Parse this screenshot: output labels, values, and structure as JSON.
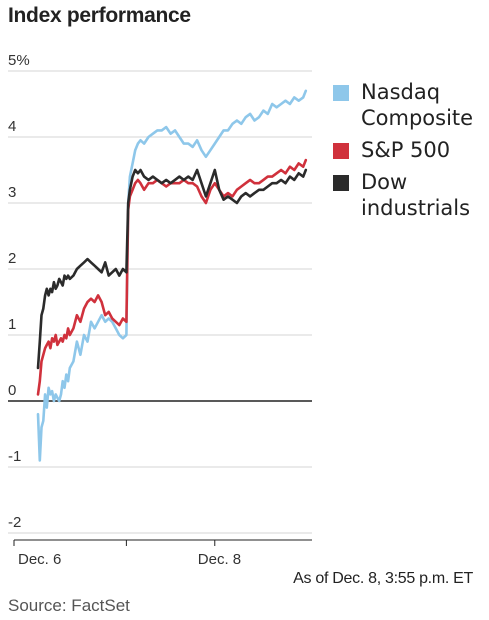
{
  "chart_data": {
    "type": "line",
    "title": "Index performance",
    "y_unit": "%",
    "ylim": [
      -2,
      5
    ],
    "yticks": [
      -2,
      -1,
      0,
      1,
      2,
      3,
      4,
      5
    ],
    "ytick_labels": [
      "-2",
      "-1",
      "0",
      "1",
      "2",
      "3",
      "4",
      "5%"
    ],
    "xticks": [
      {
        "label": "Dec. 6",
        "x": 0
      },
      {
        "label": "Dec. 8",
        "x": 2
      }
    ],
    "x_range": [
      0,
      3.1
    ],
    "day_boundaries": [
      0,
      1,
      2
    ],
    "legend_position": "right",
    "series": [
      {
        "name": "Nasdaq Composite",
        "color": "#8ec7ea",
        "x": [
          0,
          0.02,
          0.04,
          0.06,
          0.08,
          0.1,
          0.12,
          0.14,
          0.16,
          0.18,
          0.2,
          0.22,
          0.24,
          0.26,
          0.28,
          0.3,
          0.32,
          0.34,
          0.36,
          0.4,
          0.44,
          0.48,
          0.52,
          0.56,
          0.6,
          0.64,
          0.68,
          0.72,
          0.76,
          0.8,
          0.84,
          0.88,
          0.92,
          0.96,
          1.0,
          1.02,
          1.04,
          1.07,
          1.1,
          1.13,
          1.16,
          1.2,
          1.25,
          1.3,
          1.35,
          1.4,
          1.45,
          1.5,
          1.55,
          1.6,
          1.65,
          1.7,
          1.75,
          1.8,
          1.85,
          1.9,
          1.95,
          2.0,
          2.05,
          2.1,
          2.15,
          2.2,
          2.25,
          2.3,
          2.35,
          2.4,
          2.45,
          2.5,
          2.55,
          2.6,
          2.65,
          2.7,
          2.75,
          2.8,
          2.85,
          2.9,
          2.95,
          3.0,
          3.03
        ],
        "y": [
          -0.2,
          -0.9,
          -0.4,
          -0.3,
          0.1,
          -0.1,
          0.2,
          0.1,
          0.15,
          0.0,
          0.1,
          0.05,
          0.0,
          0.1,
          0.3,
          0.2,
          0.4,
          0.3,
          0.5,
          0.6,
          0.9,
          0.7,
          1.0,
          0.9,
          1.2,
          1.1,
          1.2,
          1.3,
          1.2,
          1.25,
          1.2,
          1.1,
          1.0,
          0.95,
          1.0,
          3.0,
          3.4,
          3.6,
          3.8,
          3.9,
          3.95,
          3.9,
          4.0,
          4.05,
          4.1,
          4.1,
          4.15,
          4.05,
          4.1,
          4.0,
          3.9,
          3.9,
          3.85,
          3.95,
          3.8,
          3.7,
          3.8,
          3.9,
          4.0,
          4.1,
          4.1,
          4.2,
          4.25,
          4.2,
          4.3,
          4.35,
          4.25,
          4.3,
          4.4,
          4.35,
          4.5,
          4.45,
          4.5,
          4.55,
          4.5,
          4.6,
          4.55,
          4.6,
          4.7
        ]
      },
      {
        "name": "S&P 500",
        "color": "#d0313c",
        "x": [
          0,
          0.02,
          0.04,
          0.06,
          0.08,
          0.1,
          0.12,
          0.14,
          0.16,
          0.18,
          0.2,
          0.22,
          0.24,
          0.26,
          0.28,
          0.3,
          0.32,
          0.34,
          0.36,
          0.4,
          0.44,
          0.48,
          0.52,
          0.56,
          0.6,
          0.64,
          0.68,
          0.72,
          0.76,
          0.8,
          0.84,
          0.88,
          0.92,
          0.96,
          1.0,
          1.02,
          1.04,
          1.07,
          1.1,
          1.13,
          1.16,
          1.2,
          1.25,
          1.3,
          1.35,
          1.4,
          1.45,
          1.5,
          1.55,
          1.6,
          1.65,
          1.7,
          1.75,
          1.8,
          1.85,
          1.9,
          1.95,
          2.0,
          2.05,
          2.1,
          2.15,
          2.2,
          2.25,
          2.3,
          2.35,
          2.4,
          2.45,
          2.5,
          2.55,
          2.6,
          2.65,
          2.7,
          2.75,
          2.8,
          2.85,
          2.9,
          2.95,
          3.0,
          3.03
        ],
        "y": [
          0.1,
          0.3,
          0.6,
          0.7,
          0.8,
          0.85,
          0.9,
          0.8,
          0.95,
          0.9,
          1.0,
          0.85,
          0.9,
          0.95,
          0.9,
          1.0,
          0.95,
          1.1,
          1.0,
          1.1,
          1.3,
          1.2,
          1.4,
          1.5,
          1.55,
          1.5,
          1.6,
          1.5,
          1.3,
          1.35,
          1.25,
          1.2,
          1.15,
          1.25,
          1.2,
          2.9,
          3.1,
          3.2,
          3.3,
          3.35,
          3.3,
          3.2,
          3.3,
          3.3,
          3.35,
          3.3,
          3.25,
          3.3,
          3.3,
          3.3,
          3.35,
          3.3,
          3.3,
          3.25,
          3.1,
          3.0,
          3.2,
          3.3,
          3.2,
          3.1,
          3.15,
          3.1,
          3.2,
          3.25,
          3.3,
          3.35,
          3.3,
          3.3,
          3.35,
          3.4,
          3.4,
          3.45,
          3.5,
          3.45,
          3.55,
          3.5,
          3.6,
          3.55,
          3.65
        ]
      },
      {
        "name": "Dow industrials",
        "color": "#2b2b2b",
        "x": [
          0,
          0.02,
          0.04,
          0.06,
          0.08,
          0.1,
          0.12,
          0.14,
          0.16,
          0.18,
          0.2,
          0.22,
          0.24,
          0.26,
          0.28,
          0.3,
          0.32,
          0.34,
          0.36,
          0.4,
          0.44,
          0.48,
          0.52,
          0.56,
          0.6,
          0.64,
          0.68,
          0.72,
          0.76,
          0.8,
          0.84,
          0.88,
          0.92,
          0.96,
          1.0,
          1.02,
          1.04,
          1.07,
          1.1,
          1.13,
          1.16,
          1.2,
          1.25,
          1.3,
          1.35,
          1.4,
          1.45,
          1.5,
          1.55,
          1.6,
          1.65,
          1.7,
          1.75,
          1.8,
          1.85,
          1.9,
          1.95,
          2.0,
          2.05,
          2.1,
          2.15,
          2.2,
          2.25,
          2.3,
          2.35,
          2.4,
          2.45,
          2.5,
          2.55,
          2.6,
          2.65,
          2.7,
          2.75,
          2.8,
          2.85,
          2.9,
          2.95,
          3.0,
          3.03
        ],
        "y": [
          0.5,
          0.9,
          1.3,
          1.4,
          1.6,
          1.7,
          1.6,
          1.7,
          1.65,
          1.8,
          1.7,
          1.75,
          1.85,
          1.8,
          1.75,
          1.9,
          1.85,
          1.9,
          1.85,
          1.9,
          2.0,
          2.05,
          2.1,
          2.15,
          2.1,
          2.05,
          2.0,
          1.95,
          2.1,
          1.9,
          1.95,
          2.0,
          1.9,
          2.0,
          1.95,
          3.0,
          3.2,
          3.4,
          3.5,
          3.45,
          3.5,
          3.4,
          3.35,
          3.4,
          3.35,
          3.3,
          3.35,
          3.3,
          3.35,
          3.4,
          3.35,
          3.4,
          3.35,
          3.5,
          3.3,
          3.1,
          3.3,
          3.5,
          3.2,
          3.05,
          3.1,
          3.05,
          3.0,
          3.1,
          3.15,
          3.1,
          3.15,
          3.2,
          3.2,
          3.25,
          3.3,
          3.3,
          3.35,
          3.3,
          3.4,
          3.35,
          3.45,
          3.4,
          3.5
        ]
      }
    ]
  },
  "footer": {
    "as_of": "As of Dec. 8, 3:55 p.m. ET",
    "source": "Source: FactSet"
  }
}
